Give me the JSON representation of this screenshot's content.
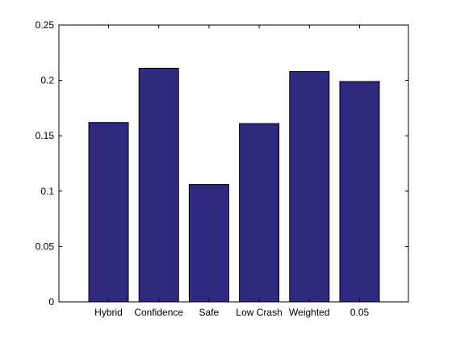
{
  "chart_data": {
    "type": "bar",
    "title": "",
    "xlabel": "",
    "ylabel": "",
    "categories": [
      "Hybrid",
      "Confidence",
      "Safe",
      "Low Crash",
      "Weighted",
      "0.05"
    ],
    "values": [
      0.162,
      0.211,
      0.106,
      0.161,
      0.208,
      0.199
    ],
    "ylim": [
      0,
      0.25
    ],
    "yticks": [
      0,
      0.05,
      0.1,
      0.15,
      0.2,
      0.25
    ],
    "ytick_labels": [
      "0",
      "0.05",
      "0.1",
      "0.15",
      "0.2",
      "0.25"
    ],
    "grid": false,
    "colors": {
      "bar_fill": "#2f2a80",
      "bar_stroke": "#000000",
      "axis": "#000000",
      "background": "#ffffff"
    }
  }
}
